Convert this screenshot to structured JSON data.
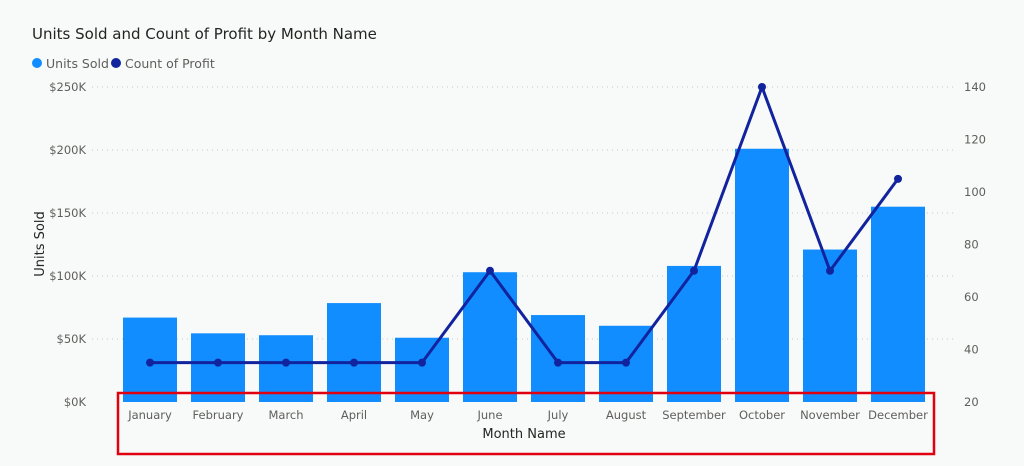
{
  "chart_data": {
    "type": "bar",
    "title": "Units Sold and Count of Profit by Month Name",
    "xlabel": "Month Name",
    "ylabel": "Units Sold",
    "categories": [
      "January",
      "February",
      "March",
      "April",
      "May",
      "June",
      "July",
      "August",
      "September",
      "October",
      "November",
      "December"
    ],
    "series": [
      {
        "name": "Units Sold",
        "type": "bar",
        "axis": "left",
        "color": "#118dff",
        "values": [
          67000,
          54500,
          53000,
          78500,
          51000,
          103000,
          69000,
          60500,
          108000,
          201000,
          121000,
          155000
        ]
      },
      {
        "name": "Count of Profit",
        "type": "line",
        "axis": "right",
        "color": "#12239e",
        "values": [
          35,
          35,
          35,
          35,
          35,
          70,
          35,
          35,
          70,
          140,
          70,
          105
        ]
      }
    ],
    "y_left": {
      "ylim": [
        0,
        250000
      ],
      "ticks": [
        0,
        50000,
        100000,
        150000,
        200000,
        250000
      ],
      "tick_labels": [
        "$0K",
        "$50K",
        "$100K",
        "$150K",
        "$200K",
        "$250K"
      ]
    },
    "y_right": {
      "ylim": [
        20,
        140
      ],
      "ticks": [
        20,
        40,
        60,
        80,
        100,
        120,
        140
      ],
      "tick_labels": [
        "20",
        "40",
        "60",
        "80",
        "100",
        "120",
        "140"
      ]
    },
    "grid": true,
    "legend": "top-left",
    "highlight": {
      "target": "x-axis labels and title",
      "color": "#e0000f"
    }
  }
}
